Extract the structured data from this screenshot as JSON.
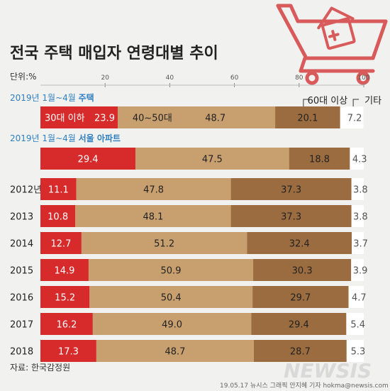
{
  "title": "전국 주택 매입자 연령대별 추이",
  "unit_label": "단위:%",
  "axis_ticks": [
    20,
    40,
    60,
    80,
    100
  ],
  "source": "자료: 한국감정원",
  "credit": "19.05.17 뉴시스 그래픽 안지혜 기자 hokma@newsis.com",
  "brand": "NEWSIS",
  "colors": {
    "age30": "#d72b2b",
    "age40_50": "#c8a070",
    "age60": "#9b6c3f",
    "other": "#ffffff",
    "section_title": "#2f7fc1",
    "background": "#f1f1ef"
  },
  "sections": [
    {
      "date": "2019년 1월~4월",
      "subject": "주택"
    },
    {
      "date": "2019년 1월~4월",
      "subject": "서울 아파트"
    }
  ],
  "category_labels": {
    "age30": "30대 이하",
    "age40_50": "40~50대",
    "age60": "60대 이상",
    "other": "기타"
  },
  "chart_data": {
    "type": "bar",
    "stacked": true,
    "orientation": "horizontal",
    "xlim": [
      0,
      100
    ],
    "categories": [
      "2019년 1월~4월 주택",
      "2019년 1월~4월 서울 아파트",
      "2012년",
      "2013",
      "2014",
      "2015",
      "2016",
      "2017",
      "2018"
    ],
    "row_labels": [
      "",
      "",
      "2012년",
      "2013",
      "2014",
      "2015",
      "2016",
      "2017",
      "2018"
    ],
    "series": [
      {
        "name": "30대 이하",
        "values": [
          23.9,
          29.4,
          11.1,
          10.8,
          12.7,
          14.9,
          15.2,
          16.2,
          17.3
        ]
      },
      {
        "name": "40~50대",
        "values": [
          48.7,
          47.5,
          47.8,
          48.1,
          51.2,
          50.9,
          50.4,
          49.0,
          48.7
        ]
      },
      {
        "name": "60대 이상",
        "values": [
          20.1,
          18.8,
          37.3,
          37.3,
          32.4,
          30.3,
          29.7,
          29.4,
          28.7
        ]
      },
      {
        "name": "기타",
        "values": [
          7.2,
          4.3,
          3.8,
          3.8,
          3.7,
          3.9,
          4.7,
          5.4,
          5.3
        ]
      }
    ],
    "value_labels": [
      [
        "23.9",
        "48.7",
        "20.1",
        "7.2"
      ],
      [
        "29.4",
        "47.5",
        "18.8",
        "4.3"
      ],
      [
        "11.1",
        "47.8",
        "37.3",
        "3.8"
      ],
      [
        "10.8",
        "48.1",
        "37.3",
        "3.8"
      ],
      [
        "12.7",
        "51.2",
        "32.4",
        "3.7"
      ],
      [
        "14.9",
        "50.9",
        "30.3",
        "3.9"
      ],
      [
        "15.2",
        "50.4",
        "29.7",
        "4.7"
      ],
      [
        "16.2",
        "49.0",
        "29.4",
        "5.4"
      ],
      [
        "17.3",
        "48.7",
        "28.7",
        "5.3"
      ]
    ]
  }
}
